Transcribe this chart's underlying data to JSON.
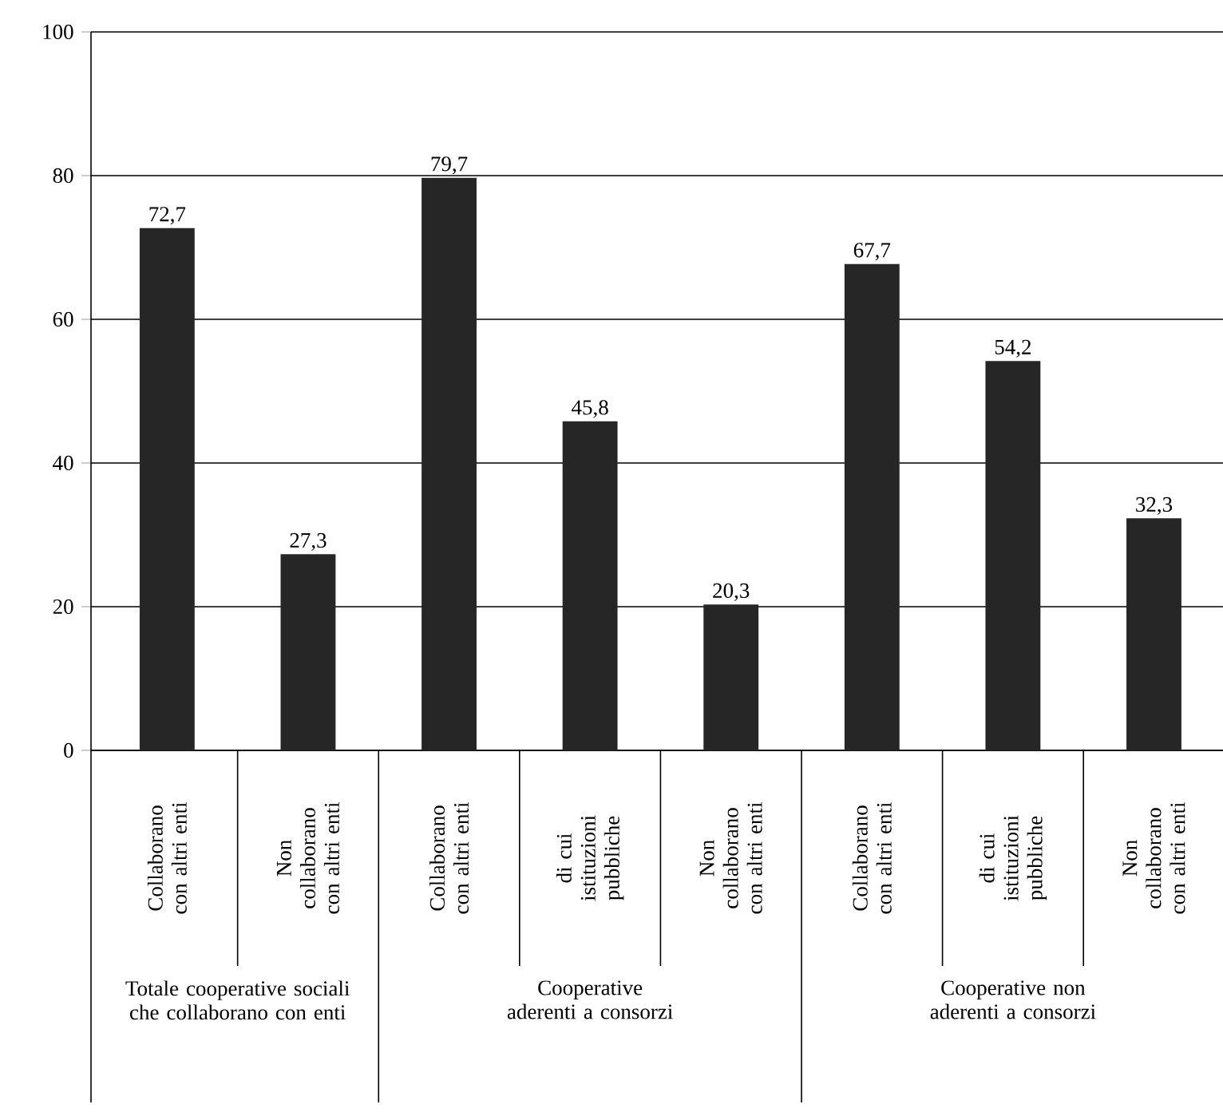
{
  "chart_data": {
    "type": "bar",
    "categories": [
      "Collaborano con altri enti",
      "Non collaborano con altri enti",
      "Collaborano con altri enti",
      "di cui istituzioni pubbliche",
      "Non collaborano con altri enti",
      "Collaborano con altri enti",
      "di cui istituzioni pubbliche",
      "Non collaborano con altri enti"
    ],
    "values": [
      72.7,
      27.3,
      79.7,
      45.8,
      20.3,
      67.7,
      54.2,
      32.3
    ],
    "value_labels": [
      "72,7",
      "27,3",
      "79,7",
      "45,8",
      "20,3",
      "67,7",
      "54,2",
      "32,3"
    ],
    "color": "#262626",
    "ylim": [
      0,
      100
    ],
    "yticks": [
      0,
      20,
      40,
      60,
      80,
      100
    ],
    "grid": "y",
    "annotations": [
      "Totale cooperative sociali che collaborano con enti",
      "Cooperative aderenti a consorzi",
      "Cooperative non aderenti a consorzi"
    ]
  }
}
